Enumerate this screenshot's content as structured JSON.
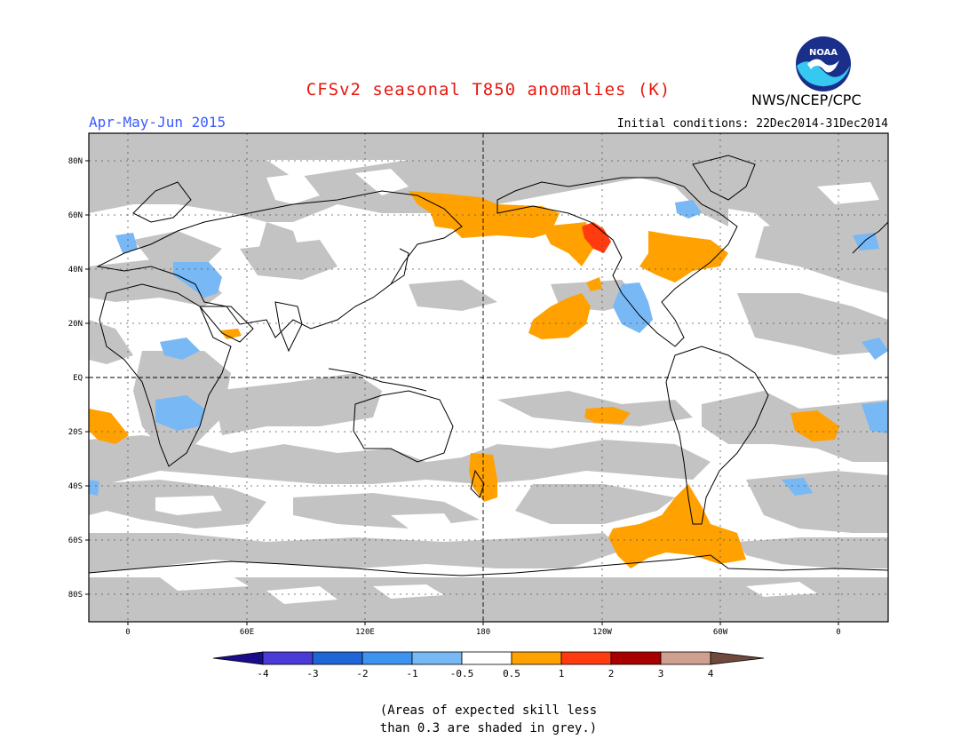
{
  "header": {
    "title": "CFSv2 seasonal T850 anomalies (K)",
    "period": "Apr-May-Jun 2015",
    "initial_conditions": "Initial conditions: 22Dec2014-31Dec2014",
    "agency": "NWS/NCEP/CPC",
    "logo_text": "NOAA"
  },
  "map": {
    "projection": "cylindrical equidistant",
    "lat_labels": [
      "80N",
      "60N",
      "40N",
      "20N",
      "EQ",
      "20S",
      "40S",
      "60S",
      "80S"
    ],
    "lon_labels": [
      "0",
      "60E",
      "120E",
      "180",
      "120W",
      "60W",
      "0"
    ],
    "regions": [
      {
        "name": "Northeast Pacific / Alaska",
        "anomaly_class": "0.5 to 1"
      },
      {
        "name": "Western Canada",
        "anomaly_class": "1 to 2"
      },
      {
        "name": "Eastern United States / Great Lakes",
        "anomaly_class": "0.5 to 1"
      },
      {
        "name": "Subtropical North Pacific",
        "anomaly_class": "0.5 to 1"
      },
      {
        "name": "Southeast Pacific near Antarctic Peninsula",
        "anomaly_class": "0.5 to 1"
      },
      {
        "name": "New Zealand",
        "anomaly_class": "0.5 to 1"
      },
      {
        "name": "Western Mexico",
        "anomaly_class": "-1 to -0.5"
      },
      {
        "name": "Eastern Africa",
        "anomaly_class": "-1 to -0.5"
      },
      {
        "name": "Middle East",
        "anomaly_class": "-1 to -0.5"
      }
    ]
  },
  "colorbar": {
    "labels": [
      "-4",
      "-3",
      "-2",
      "-1",
      "-0.5",
      "0.5",
      "1",
      "2",
      "3",
      "4"
    ],
    "colors": [
      "#1b0c8c",
      "#4a3ad6",
      "#1e66d6",
      "#3e93f0",
      "#78b8f5",
      "#ffffff",
      "#ffa100",
      "#ff3b0f",
      "#a80000",
      "#cfa090",
      "#6f4a3c"
    ]
  },
  "notes": {
    "line1": "(Areas of expected skill less",
    "line2": "than 0.3 are shaded in grey.)"
  },
  "colors": {
    "skill_mask_grey": "#c3c3c3",
    "warm_anomaly": "#ffa100",
    "strong_warm": "#ff3b0f",
    "cool_anomaly": "#78b8f5",
    "title_red": "#e8170f",
    "period_blue": "#3a5cff"
  }
}
